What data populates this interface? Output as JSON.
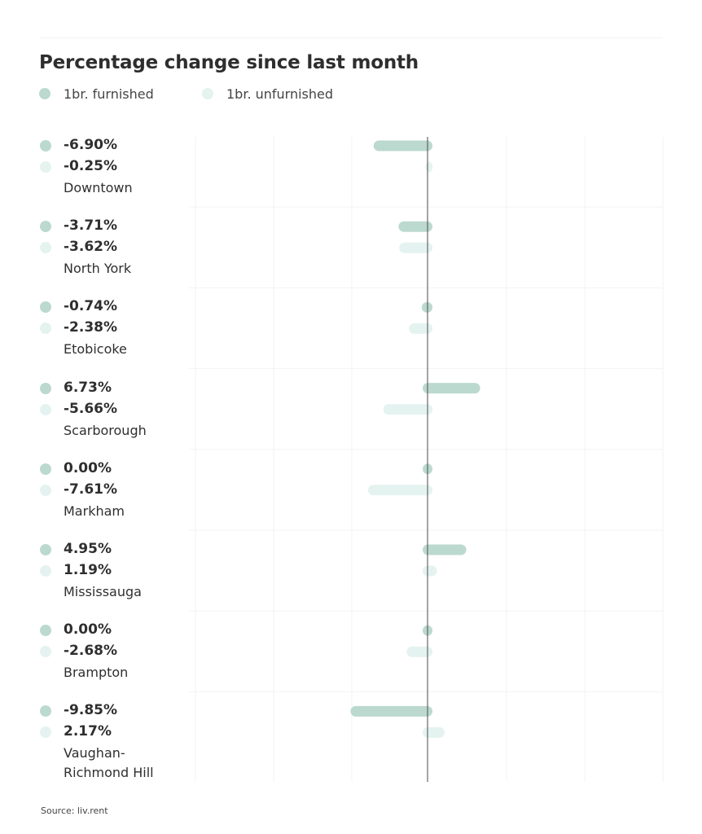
{
  "chart_data": {
    "type": "bar",
    "orientation": "horizontal",
    "title": "Percentage change since last month",
    "legend_position": "top-left",
    "grid": true,
    "series": [
      {
        "name": "1br. furnished",
        "color": "#bcd9d0",
        "values": [
          -6.9,
          -3.71,
          -0.74,
          6.73,
          0.0,
          4.95,
          0.0,
          -9.85
        ]
      },
      {
        "name": "1br. unfurnished",
        "color": "#e4f3ef",
        "values": [
          -0.25,
          -3.62,
          -2.38,
          -5.66,
          -7.61,
          1.19,
          -2.68,
          2.17
        ]
      }
    ],
    "categories": [
      "Downtown",
      "North York",
      "Etobicoke",
      "Scarborough",
      "Markham",
      "Mississauga",
      "Brampton",
      "Vaughan-\nRichmond Hill"
    ],
    "value_labels": [
      [
        "-6.90%",
        "-0.25%"
      ],
      [
        "-3.71%",
        "-3.62%"
      ],
      [
        "-0.74%",
        "-2.38%"
      ],
      [
        "6.73%",
        "-5.66%"
      ],
      [
        "0.00%",
        "-7.61%"
      ],
      [
        "4.95%",
        "1.19%"
      ],
      [
        "0.00%",
        "-2.68%"
      ],
      [
        "-9.85%",
        "2.17%"
      ]
    ]
  },
  "source": "Source: liv.rent"
}
